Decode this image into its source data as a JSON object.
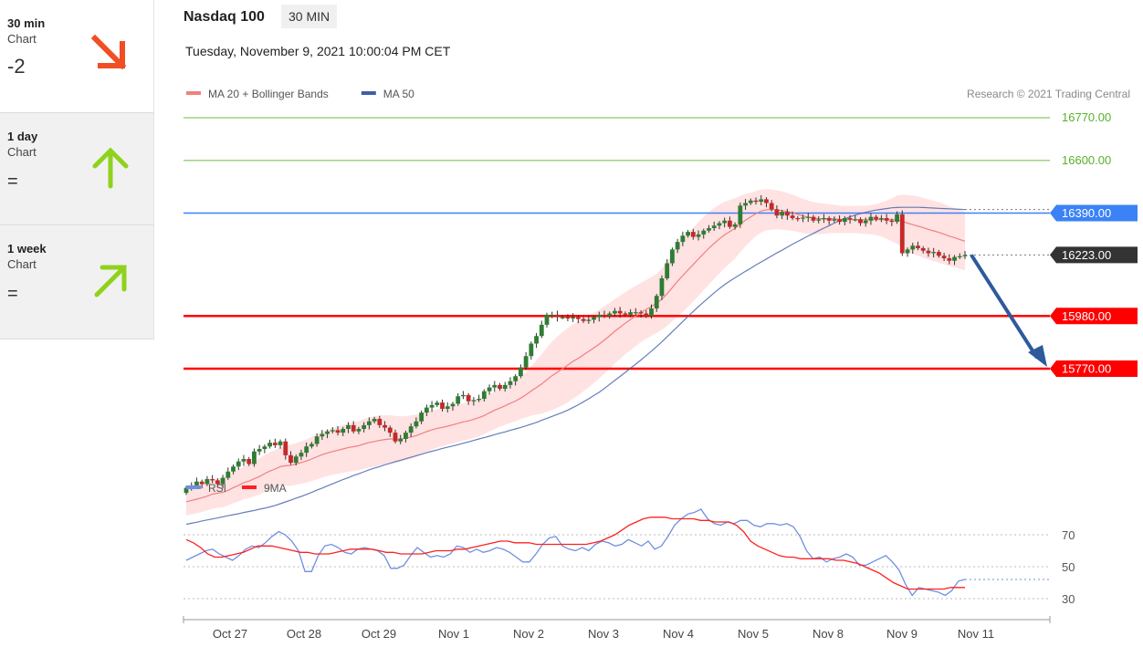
{
  "sidebar": {
    "items": [
      {
        "name": "30 min",
        "sub": "Chart",
        "value": "-2",
        "direction": "down",
        "color": "#f04e23",
        "state": "active"
      },
      {
        "name": "1 day",
        "sub": "Chart",
        "value": "=",
        "direction": "up",
        "color": "#8fd21c",
        "state": "inactive"
      },
      {
        "name": "1 week",
        "sub": "Chart",
        "value": "=",
        "direction": "up-right",
        "color": "#8fd21c",
        "state": "inactive"
      }
    ]
  },
  "header": {
    "title": "Nasdaq 100",
    "badge": "30 MIN",
    "datetime": "Tuesday, November 9, 2021 10:00:04 PM CET"
  },
  "chart_data": [
    {
      "type": "candlestick",
      "legend": [
        {
          "label": "MA 20 + Bollinger Bands",
          "color": "#f08080"
        },
        {
          "label": "MA 50",
          "color": "#3f5fa8"
        }
      ],
      "copyright": "Research © 2021 Trading Central",
      "levels": [
        {
          "value": 16770.0,
          "label": "16770.00",
          "color": "#9fd27a",
          "kind": "resistance"
        },
        {
          "value": 16600.0,
          "label": "16600.00",
          "color": "#9fd27a",
          "kind": "resistance"
        },
        {
          "value": 16390.0,
          "label": "16390.00",
          "color": "#3b82f6",
          "kind": "pivot"
        },
        {
          "value": 16223.0,
          "label": "16223.00",
          "color": "#333333",
          "kind": "last"
        },
        {
          "value": 15980.0,
          "label": "15980.00",
          "color": "#ff0000",
          "kind": "support"
        },
        {
          "value": 15770.0,
          "label": "15770.00",
          "color": "#ff0000",
          "kind": "support"
        }
      ],
      "x_labels": [
        "Oct 27",
        "Oct 28",
        "Oct 29",
        "Nov 1",
        "Nov 2",
        "Nov 3",
        "Nov 4",
        "Nov 5",
        "Nov 8",
        "Nov 9",
        "Nov 11"
      ],
      "close": [
        15295,
        15305,
        15320,
        15310,
        15330,
        15325,
        15310,
        15335,
        15360,
        15380,
        15400,
        15410,
        15390,
        15440,
        15450,
        15460,
        15475,
        15465,
        15480,
        15425,
        15395,
        15420,
        15435,
        15460,
        15470,
        15500,
        15510,
        15520,
        15525,
        15515,
        15530,
        15545,
        15520,
        15530,
        15545,
        15560,
        15570,
        15545,
        15535,
        15515,
        15480,
        15490,
        15515,
        15540,
        15560,
        15595,
        15615,
        15625,
        15635,
        15610,
        15620,
        15630,
        15660,
        15665,
        15640,
        15645,
        15650,
        15680,
        15695,
        15705,
        15690,
        15705,
        15720,
        15740,
        15775,
        15820,
        15870,
        15900,
        15945,
        15985,
        15985,
        15975,
        15975,
        15970,
        15975,
        15968,
        15960,
        15965,
        15975,
        15985,
        15980,
        15990,
        16000,
        15990,
        15985,
        15995,
        15995,
        15990,
        15980,
        16010,
        16060,
        16130,
        16190,
        16245,
        16275,
        16300,
        16315,
        16295,
        16305,
        16320,
        16330,
        16340,
        16350,
        16360,
        16335,
        16345,
        16420,
        16430,
        16440,
        16435,
        16445,
        16430,
        16405,
        16380,
        16395,
        16380,
        16370,
        16368,
        16372,
        16375,
        16360,
        16365,
        16370,
        16360,
        16365,
        16355,
        16370,
        16365,
        16365,
        16350,
        16360,
        16375,
        16365,
        16370,
        16360,
        16355,
        16385,
        16230,
        16245,
        16260,
        16250,
        16240,
        16230,
        16235,
        16220,
        16210,
        16200,
        16215,
        16218,
        16223
      ],
      "ma20": [
        15240,
        15245,
        15250,
        15256,
        15262,
        15270,
        15274,
        15277,
        15285,
        15296,
        15305,
        15316,
        15322,
        15331,
        15340,
        15352,
        15362,
        15370,
        15380,
        15383,
        15385,
        15390,
        15396,
        15402,
        15410,
        15419,
        15427,
        15434,
        15440,
        15445,
        15450,
        15456,
        15459,
        15463,
        15470,
        15476,
        15480,
        15484,
        15488,
        15490,
        15490,
        15490,
        15493,
        15498,
        15503,
        15511,
        15519,
        15526,
        15532,
        15536,
        15541,
        15546,
        15552,
        15558,
        15562,
        15568,
        15575,
        15583,
        15594,
        15604,
        15613,
        15622,
        15632,
        15641,
        15653,
        15666,
        15681,
        15695,
        15709,
        15726,
        15742,
        15756,
        15770,
        15784,
        15799,
        15811,
        15825,
        15839,
        15853,
        15868,
        15884,
        15901,
        15919,
        15935,
        15951,
        15966,
        15980,
        15994,
        16006,
        16018,
        16030,
        16047,
        16069,
        16093,
        16118,
        16141,
        16163,
        16185,
        16207,
        16229,
        16250,
        16269,
        16287,
        16303,
        16316,
        16329,
        16346,
        16362,
        16375,
        16388,
        16398,
        16403,
        16404,
        16403,
        16400,
        16396,
        16391,
        16385,
        16379,
        16373,
        16370,
        16368,
        16368,
        16368,
        16367,
        16365,
        16364,
        16364,
        16364,
        16364,
        16363,
        16364,
        16364,
        16364,
        16364,
        16363,
        16364,
        16357,
        16350,
        16344,
        16338,
        16332,
        16325,
        16319,
        16313,
        16306,
        16298,
        16292,
        16285,
        16278
      ],
      "ma50": [
        15150,
        15154,
        15158,
        15163,
        15167,
        15171,
        15175,
        15180,
        15184,
        15188,
        15192,
        15197,
        15201,
        15205,
        15210,
        15214,
        15219,
        15225,
        15232,
        15239,
        15246,
        15254,
        15261,
        15269,
        15277,
        15286,
        15294,
        15303,
        15311,
        15320,
        15328,
        15336,
        15344,
        15351,
        15359,
        15367,
        15374,
        15380,
        15387,
        15393,
        15399,
        15405,
        15411,
        15417,
        15423,
        15429,
        15435,
        15441,
        15446,
        15452,
        15457,
        15462,
        15467,
        15473,
        15478,
        15484,
        15490,
        15495,
        15501,
        15507,
        15513,
        15518,
        15524,
        15530,
        15536,
        15542,
        15549,
        15556,
        15564,
        15572,
        15580,
        15588,
        15596,
        15605,
        15615,
        15626,
        15638,
        15650,
        15663,
        15676,
        15691,
        15707,
        15723,
        15739,
        15755,
        15772,
        15788,
        15805,
        15822,
        15840,
        15858,
        15877,
        15897,
        15917,
        15937,
        15958,
        15978,
        15998,
        16017,
        16036,
        16054,
        16072,
        16089,
        16105,
        16119,
        16132,
        16145,
        16158,
        16170,
        16183,
        16195,
        16207,
        16219,
        16231,
        16242,
        16254,
        16266,
        16277,
        16288,
        16299,
        16309,
        16320,
        16330,
        16340,
        16350,
        16359,
        16367,
        16375,
        16382,
        16388,
        16393,
        16398,
        16402,
        16405,
        16408,
        16411,
        16412,
        16413,
        16413,
        16413,
        16413,
        16412,
        16411,
        16410,
        16409,
        16408,
        16407,
        16406,
        16405,
        16404
      ],
      "band_width": [
        55,
        55,
        56,
        57,
        57,
        58,
        58,
        59,
        60,
        62,
        64,
        66,
        68,
        70,
        72,
        74,
        75,
        76,
        77,
        80,
        82,
        83,
        84,
        86,
        88,
        90,
        91,
        92,
        93,
        94,
        95,
        96,
        97,
        98,
        99,
        100,
        100,
        99,
        97,
        94,
        92,
        90,
        88,
        86,
        84,
        82,
        80,
        78,
        76,
        75,
        74,
        74,
        74,
        74,
        74,
        74,
        74,
        74,
        74,
        75,
        75,
        76,
        78,
        80,
        84,
        90,
        98,
        108,
        118,
        128,
        136,
        142,
        146,
        148,
        148,
        147,
        145,
        143,
        140,
        137,
        134,
        131,
        128,
        126,
        124,
        122,
        120,
        118,
        117,
        117,
        118,
        122,
        128,
        134,
        140,
        144,
        146,
        147,
        147,
        146,
        144,
        141,
        137,
        132,
        126,
        120,
        112,
        104,
        96,
        90,
        86,
        82,
        80,
        78,
        76,
        74,
        72,
        70,
        68,
        66,
        64,
        62,
        60,
        58,
        56,
        55,
        54,
        54,
        54,
        55,
        56,
        58,
        62,
        68,
        76,
        86,
        96,
        106,
        112,
        116,
        118,
        119,
        120,
        120,
        120,
        120,
        119,
        118,
        117,
        116
      ]
    },
    {
      "type": "line",
      "legend": [
        {
          "label": "RSI",
          "color": "#6f8fe0"
        },
        {
          "label": "9MA",
          "color": "#ff2020"
        }
      ],
      "y_ticks": [
        30,
        50,
        70
      ],
      "rsi": [
        54,
        56,
        58,
        60,
        61,
        58,
        56,
        54,
        57,
        61,
        63,
        62,
        65,
        69,
        72,
        70,
        66,
        60,
        47,
        47,
        57,
        63,
        64,
        62,
        59,
        58,
        61,
        62,
        61,
        60,
        57,
        49,
        49,
        51,
        57,
        62,
        59,
        56,
        57,
        56,
        58,
        63,
        62,
        59,
        61,
        59,
        60,
        62,
        61,
        59,
        56,
        53,
        53,
        58,
        64,
        68,
        69,
        63,
        61,
        60,
        62,
        60,
        64,
        66,
        65,
        63,
        64,
        67,
        65,
        63,
        66,
        61,
        63,
        69,
        76,
        80,
        83,
        84,
        86,
        80,
        77,
        76,
        78,
        77,
        79,
        79,
        76,
        75,
        77,
        77,
        76,
        77,
        75,
        69,
        60,
        55,
        56,
        53,
        55,
        56,
        58,
        56,
        51,
        51,
        53,
        55,
        57,
        53,
        48,
        39,
        32,
        37,
        36,
        35,
        34,
        32,
        35,
        41,
        42
      ],
      "ma9": [
        67,
        65,
        62,
        58,
        56,
        56,
        57,
        58,
        59,
        61,
        63,
        63,
        63,
        62,
        61,
        60,
        59,
        59,
        58,
        58,
        58,
        59,
        60,
        61,
        61,
        61,
        61,
        60,
        59,
        59,
        58,
        58,
        58,
        58,
        59,
        60,
        60,
        60,
        61,
        61,
        62,
        63,
        64,
        65,
        66,
        66,
        65,
        65,
        65,
        64,
        64,
        64,
        64,
        64,
        64,
        64,
        64,
        65,
        66,
        68,
        70,
        73,
        76,
        78,
        80,
        81,
        81,
        81,
        80,
        80,
        80,
        80,
        79,
        79,
        78,
        78,
        78,
        76,
        72,
        66,
        63,
        61,
        59,
        57,
        56,
        56,
        55,
        55,
        55,
        55,
        55,
        54,
        54,
        53,
        52,
        50,
        48,
        46,
        43,
        40,
        38,
        36,
        36,
        36,
        36,
        36,
        36,
        37,
        37,
        37
      ]
    }
  ]
}
